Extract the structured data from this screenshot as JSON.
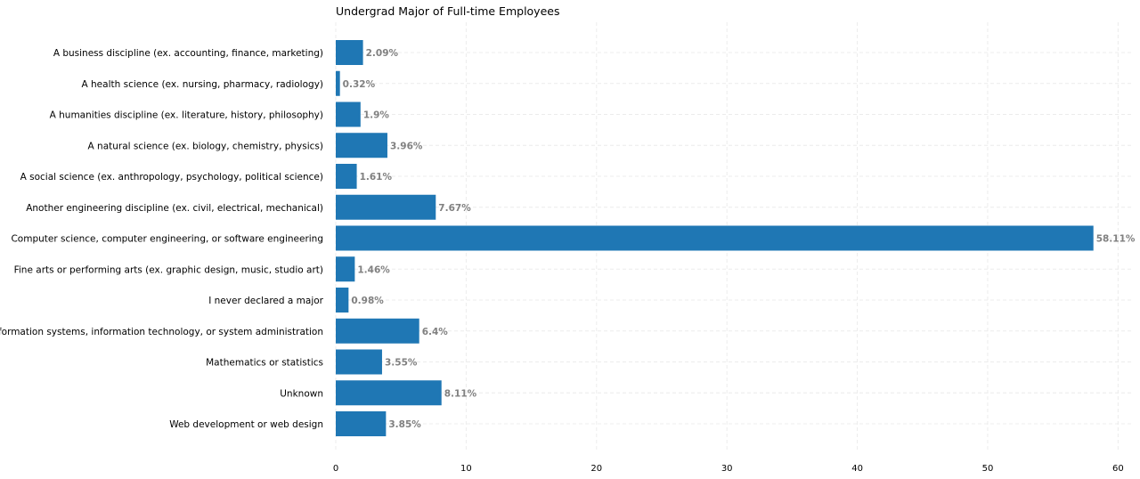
{
  "chart_data": {
    "type": "bar",
    "orientation": "horizontal",
    "title": "Undergrad Major of Full-time Employees",
    "xlabel": "",
    "ylabel": "",
    "categories": [
      "A business discipline (ex. accounting, finance, marketing)",
      "A health science (ex. nursing, pharmacy, radiology)",
      "A humanities discipline (ex. literature, history, philosophy)",
      "A natural science (ex. biology, chemistry, physics)",
      "A social science (ex. anthropology, psychology, political science)",
      "Another engineering discipline (ex. civil, electrical, mechanical)",
      "Computer science, computer engineering, or software engineering",
      "Fine arts or performing arts (ex. graphic design, music, studio art)",
      "I never declared a major",
      "Information systems, information technology, or system administration",
      "Mathematics or statistics",
      "Unknown",
      "Web development or web design"
    ],
    "values": [
      2.09,
      0.32,
      1.9,
      3.96,
      1.61,
      7.67,
      58.11,
      1.46,
      0.98,
      6.4,
      3.55,
      8.11,
      3.85
    ],
    "value_labels": [
      "2.09%",
      "0.32%",
      "1.9%",
      "3.96%",
      "1.61%",
      "7.67%",
      "58.11%",
      "1.46%",
      "0.98%",
      "6.4%",
      "3.55%",
      "8.11%",
      "3.85%"
    ],
    "xticks": [
      0,
      10,
      20,
      30,
      40,
      50,
      60
    ],
    "xlim": [
      0,
      61
    ],
    "grid": true,
    "bar_color": "#1f77b4",
    "value_label_color": "#808080"
  }
}
